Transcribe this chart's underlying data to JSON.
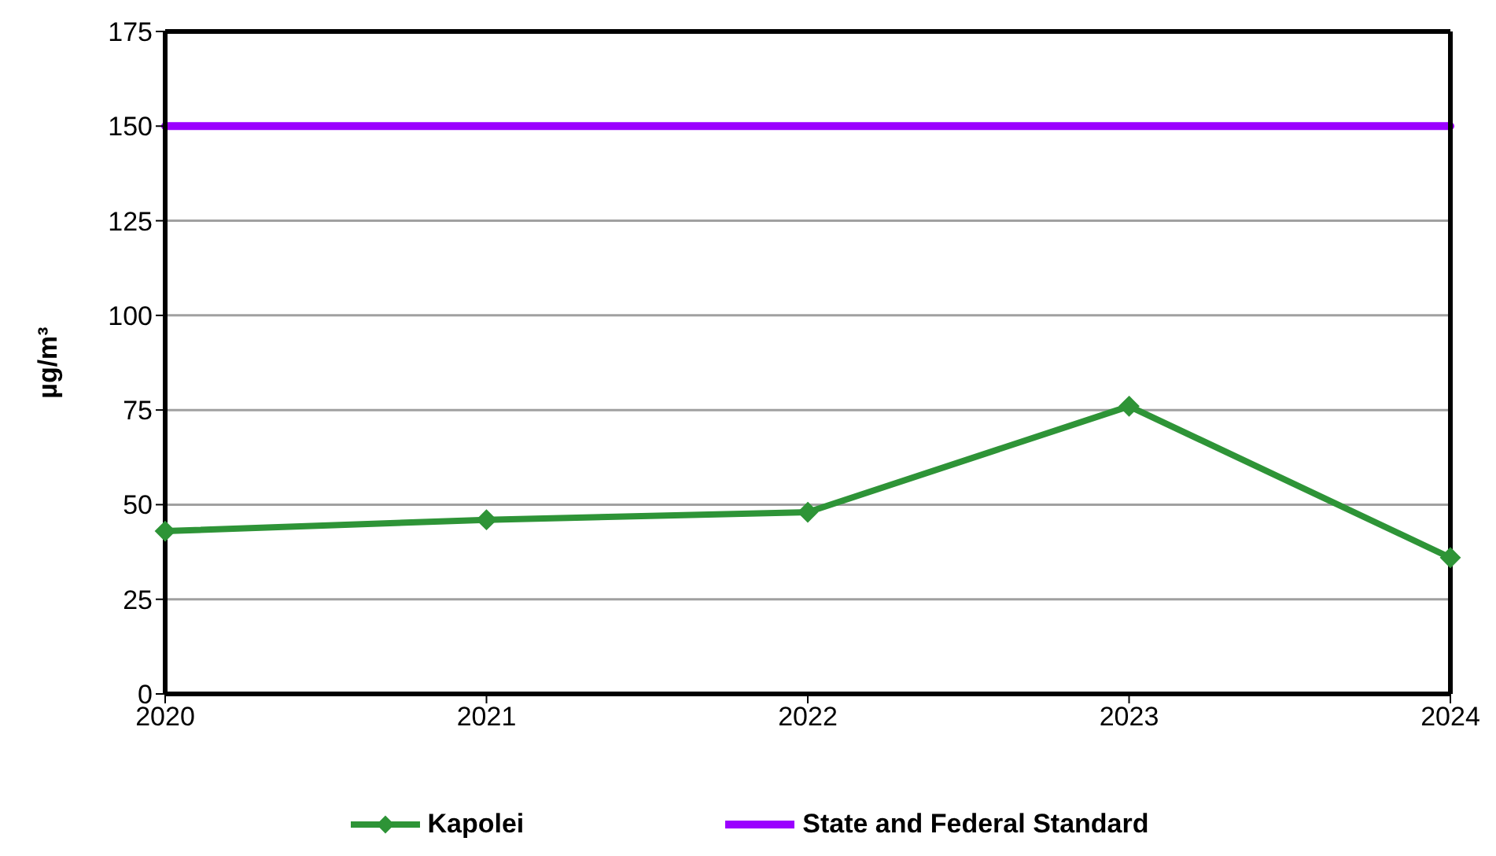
{
  "chart_data": {
    "type": "line",
    "ylabel": "µg/m³",
    "x": [
      2020,
      2021,
      2022,
      2023,
      2024
    ],
    "xlim": [
      2020,
      2024
    ],
    "xticks": [
      2020,
      2021,
      2022,
      2023,
      2024
    ],
    "ylim": [
      0,
      175
    ],
    "yticks": [
      0,
      25,
      50,
      75,
      100,
      125,
      150,
      175
    ],
    "grid": "y",
    "legend": "bottom",
    "series": [
      {
        "name": "Kapolei",
        "color": "#2e9437",
        "values": [
          43,
          46,
          48,
          76,
          36
        ],
        "marker": "diamond"
      },
      {
        "name": "State and Federal Standard",
        "color": "#9b00ff",
        "values": [
          150,
          150,
          150,
          150,
          150
        ],
        "marker": "none"
      }
    ]
  }
}
